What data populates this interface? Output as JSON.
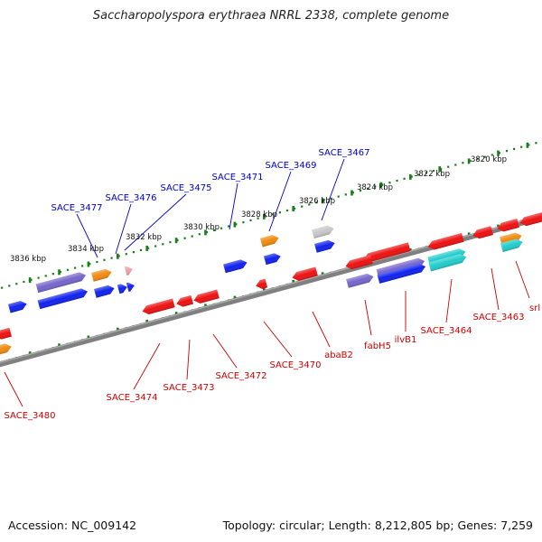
{
  "title": "Saccharopolyspora erythraea NRRL 2338, complete genome",
  "accession": "Accession: NC_009142",
  "topology": "Topology: circular; Length: 8,212,805 bp; Genes: 7,259",
  "colors": {
    "backbone": "#808080",
    "tick": "#1a7f1a",
    "forward_label": "#0000cc",
    "reverse_label": "#cc0000",
    "gene_red": "#ee1111",
    "gene_blue": "#1122ee",
    "gene_orange": "#f08a10",
    "gene_purple": "#7766cc",
    "gene_cyan": "#22cccc",
    "gene_grey": "#c8c8c8",
    "gene_pink": "#f0a0a0"
  },
  "ruler": [
    "3820 kbp",
    "3822 kbp",
    "3824 kbp",
    "3826 kbp",
    "3828 kbp",
    "3830 kbp",
    "3832 kbp",
    "3834 kbp",
    "3836 kbp"
  ],
  "forward_labels": [
    "SACE_3467",
    "SACE_3469",
    "SACE_3471",
    "SACE_3475",
    "SACE_3476",
    "SACE_3477"
  ],
  "reverse_labels": [
    "srl",
    "SACE_3463",
    "SACE_3464",
    "ilvB1",
    "fabH5",
    "abaB2",
    "SACE_3470",
    "SACE_3472",
    "SACE_3473",
    "SACE_3474",
    "SACE_3480"
  ]
}
